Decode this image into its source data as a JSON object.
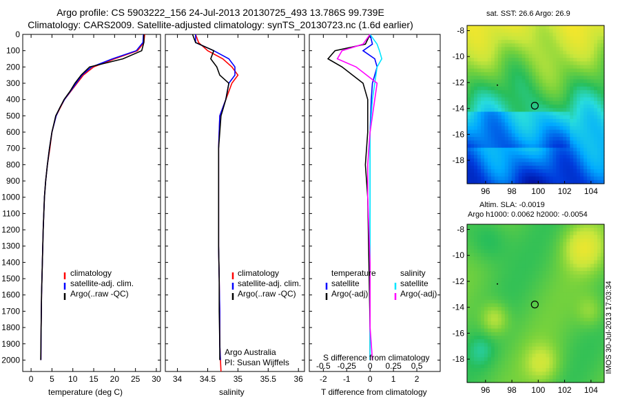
{
  "header": {
    "title_line1": "Argo profile: CS 5903222_156 24-Jul-2013 20130725_493 13.786S 99.739E",
    "title_line2": "Climatology: CARS2009. Satellite-adjusted climatology: synTS_20130723.nc (1.6d earlier)"
  },
  "chart_data": [
    {
      "id": "temperature",
      "type": "line",
      "xlabel": "temperature (deg C)",
      "ylabel": "",
      "xlim": [
        -2,
        31
      ],
      "ylim": [
        0,
        2070
      ],
      "xticks": [
        "0",
        "5",
        "10",
        "15",
        "20",
        "25",
        "30"
      ],
      "xtick_values": [
        0,
        5,
        10,
        15,
        20,
        25,
        30
      ],
      "yticks": [
        "0",
        "100",
        "200",
        "300",
        "400",
        "500",
        "600",
        "700",
        "800",
        "900",
        "1000",
        "1100",
        "1200",
        "1300",
        "1400",
        "1500",
        "1600",
        "1700",
        "1800",
        "1900",
        "2000"
      ],
      "ytick_values": [
        0,
        100,
        200,
        300,
        400,
        500,
        600,
        700,
        800,
        900,
        1000,
        1100,
        1200,
        1300,
        1400,
        1500,
        1600,
        1700,
        1800,
        1900,
        2000
      ],
      "legend": [
        "climatology",
        "satellite-adj. clim.",
        "Argo(..raw -QC)"
      ],
      "series": [
        {
          "name": "climatology",
          "color": "#ff0000",
          "x": [
            27.2,
            27.0,
            25.5,
            20,
            15,
            12.5,
            11,
            9.5,
            8.0,
            7.0,
            6.0,
            5.0,
            4.5,
            3.9,
            3.5,
            3.2,
            2.9,
            2.7,
            2.5,
            2.4,
            2.35
          ],
          "y": [
            0,
            50,
            100,
            150,
            200,
            250,
            300,
            350,
            400,
            450,
            500,
            600,
            700,
            800,
            900,
            1000,
            1200,
            1400,
            1600,
            1800,
            2000
          ]
        },
        {
          "name": "satellite-adj. clim.",
          "color": "#0000ff",
          "x": [
            26.9,
            26.8,
            25.2,
            19.5,
            14.5,
            12.2,
            10.8,
            9.4,
            8.0,
            6.9,
            6.0,
            5.0,
            4.4,
            3.9,
            3.5,
            3.2,
            2.9,
            2.7,
            2.5,
            2.4,
            2.35
          ],
          "y": [
            0,
            50,
            100,
            150,
            200,
            250,
            300,
            350,
            400,
            450,
            500,
            600,
            700,
            800,
            900,
            1000,
            1200,
            1400,
            1600,
            1800,
            2000
          ]
        },
        {
          "name": "Argo(..raw -QC)",
          "color": "#000000",
          "x": [
            27.0,
            27.0,
            26.5,
            22,
            14,
            12,
            10.5,
            9.3,
            7.9,
            6.9,
            5.9,
            5.0,
            4.4,
            3.9,
            3.5,
            3.2,
            2.9,
            2.7,
            2.5,
            2.4,
            2.3
          ],
          "y": [
            0,
            50,
            100,
            150,
            200,
            250,
            300,
            350,
            400,
            450,
            500,
            600,
            700,
            800,
            900,
            1000,
            1200,
            1400,
            1600,
            1800,
            2000
          ]
        }
      ]
    },
    {
      "id": "salinity",
      "type": "line",
      "xlabel": "salinity",
      "xlim": [
        33.8,
        36.1
      ],
      "ylim": [
        0,
        2070
      ],
      "xticks": [
        "34",
        "34.5",
        "35",
        "35.5",
        "36"
      ],
      "xtick_values": [
        34,
        34.5,
        35,
        35.5,
        36
      ],
      "legend": [
        "climatology",
        "satellite-adj. clim.",
        "Argo(..raw -QC)"
      ],
      "annotation": [
        "Argo Australia",
        "PI: Susan Wijffels"
      ],
      "series": [
        {
          "name": "climatology",
          "color": "#ff0000",
          "x": [
            34.3,
            34.35,
            34.5,
            34.75,
            34.9,
            35.0,
            34.9,
            34.8,
            34.7,
            34.68,
            34.68,
            34.68,
            34.68,
            34.69,
            34.7,
            34.7,
            34.72
          ],
          "y": [
            0,
            50,
            100,
            150,
            200,
            250,
            300,
            400,
            500,
            700,
            900,
            1100,
            1300,
            1500,
            1700,
            1900,
            2070
          ]
        },
        {
          "name": "satellite-adj. clim.",
          "color": "#0000ff",
          "x": [
            34.3,
            34.3,
            34.6,
            34.85,
            34.95,
            34.95,
            34.85,
            34.8,
            34.7,
            34.68,
            34.68,
            34.68,
            34.68,
            34.69,
            34.7,
            34.7,
            34.71
          ],
          "y": [
            0,
            50,
            100,
            150,
            200,
            250,
            300,
            400,
            500,
            700,
            900,
            1100,
            1300,
            1500,
            1700,
            1900,
            2000
          ]
        },
        {
          "name": "Argo(..raw -QC)",
          "color": "#000000",
          "x": [
            34.25,
            34.3,
            34.6,
            34.55,
            34.65,
            34.7,
            34.85,
            34.8,
            34.72,
            34.68,
            34.68,
            34.68,
            34.68,
            34.69,
            34.69,
            34.7,
            34.7
          ],
          "y": [
            0,
            50,
            100,
            150,
            200,
            250,
            300,
            400,
            500,
            700,
            900,
            1100,
            1300,
            1500,
            1700,
            1900,
            2000
          ]
        }
      ]
    },
    {
      "id": "differences",
      "type": "line",
      "xlabel": "T difference from climatology",
      "xlabel_top": "S difference from climatology",
      "xlim": [
        -2.6,
        3.0
      ],
      "ylim": [
        0,
        2070
      ],
      "xticks": [
        "-2",
        "-1",
        "0",
        "1",
        "2"
      ],
      "xtick_values": [
        -2,
        -1,
        0,
        1,
        2
      ],
      "sticks": [
        "-0.5",
        "-0.25",
        "0",
        "0.25",
        "0.5"
      ],
      "stick_values": [
        -2,
        -1,
        0,
        1,
        2
      ],
      "legend_left_title": "temperature",
      "legend_right_title": "salinity",
      "legend": [
        "satellite",
        "Argo(-adj)",
        "satellite",
        "Argo(-adj)"
      ],
      "series": [
        {
          "name": "T satellite",
          "color": "#0000ff",
          "x": [
            0,
            0.1,
            -0.3,
            0.2,
            0.3,
            0.1,
            0.05,
            0,
            0,
            0,
            0,
            0,
            0
          ],
          "y": [
            0,
            60,
            100,
            150,
            200,
            300,
            400,
            600,
            800,
            1000,
            1400,
            1800,
            2000
          ]
        },
        {
          "name": "T Argo(-adj)",
          "color": "#000000",
          "x": [
            0,
            -0.2,
            -1.5,
            -1.8,
            -1.2,
            -0.3,
            -0.1,
            -0.1,
            -0.2,
            -0.1,
            -0.05,
            0,
            0
          ],
          "y": [
            0,
            60,
            100,
            150,
            200,
            300,
            400,
            600,
            800,
            1000,
            1400,
            1800,
            2000
          ]
        },
        {
          "name": "S satellite",
          "color": "#00e5ff",
          "x": [
            0,
            0.3,
            0.4,
            0.5,
            0.3,
            0.2,
            0.1,
            0,
            0,
            0,
            0,
            0,
            0
          ],
          "y": [
            0,
            60,
            100,
            150,
            200,
            300,
            400,
            600,
            800,
            1000,
            1400,
            1800,
            2000
          ]
        },
        {
          "name": "S Argo(-adj)",
          "color": "#ff00ff",
          "x": [
            0,
            -0.3,
            -1.2,
            -1.4,
            -0.6,
            0.3,
            0.2,
            0,
            -0.1,
            -0.1,
            0,
            0,
            0.1
          ],
          "y": [
            0,
            60,
            100,
            150,
            200,
            300,
            400,
            600,
            800,
            1000,
            1400,
            1800,
            2000
          ]
        }
      ]
    },
    {
      "id": "sst_map",
      "type": "heatmap",
      "title": "sat. SST: 26.6 Argo: 26.9",
      "xlim": [
        94.6,
        105
      ],
      "ylim": [
        -19.8,
        -7.6
      ],
      "xticks": [
        "96",
        "98",
        "100",
        "102",
        "104"
      ],
      "xtick_values": [
        96,
        98,
        100,
        102,
        104
      ],
      "yticks": [
        "-8",
        "-10",
        "-12",
        "-14",
        "-16",
        "-18"
      ],
      "ytick_values": [
        -8,
        -10,
        -12,
        -14,
        -16,
        -18
      ],
      "argo_position": {
        "lon": 99.739,
        "lat": -13.786
      }
    },
    {
      "id": "sla_map",
      "type": "heatmap",
      "title_line1": "Altim. SLA: -0.0019",
      "title_line2": "Argo h1000: 0.0062 h2000: -0.0054",
      "xlim": [
        94.6,
        105
      ],
      "ylim": [
        -19.8,
        -7.6
      ],
      "xticks": [
        "96",
        "98",
        "100",
        "102",
        "104"
      ],
      "xtick_values": [
        96,
        98,
        100,
        102,
        104
      ],
      "yticks": [
        "-8",
        "-10",
        "-12",
        "-14",
        "-16",
        "-18"
      ],
      "ytick_values": [
        -8,
        -10,
        -12,
        -14,
        -16,
        -18
      ],
      "argo_position": {
        "lon": 99.739,
        "lat": -13.786
      }
    }
  ],
  "footer": {
    "vertical_stamp": "IMOS 30-Jul-2013 17:03:34"
  }
}
